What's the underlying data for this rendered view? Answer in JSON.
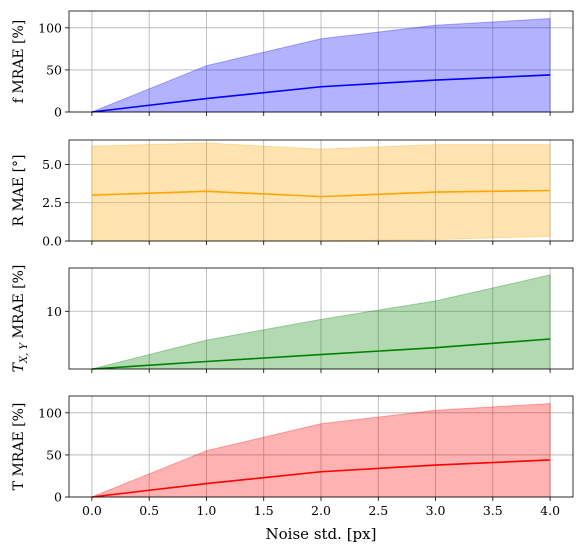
{
  "chart_data": [
    {
      "type": "area",
      "ylabel": "f  MRAE [%]",
      "ylim": [
        0,
        120
      ],
      "yticks": [
        0,
        50,
        100
      ],
      "ytick_labels": [
        "0",
        "50",
        "100"
      ],
      "x": [
        0,
        1,
        2,
        3,
        4
      ],
      "mean": [
        0,
        16,
        30,
        38,
        44
      ],
      "upper": [
        0,
        55,
        87,
        103,
        111
      ],
      "lower": [
        0,
        0,
        0,
        0,
        0
      ],
      "line_color": "#0000ff",
      "fill_color": "#0000ff",
      "grid": true
    },
    {
      "type": "area",
      "ylabel": "R MAE [°]",
      "ylim": [
        0,
        6.6
      ],
      "yticks": [
        0,
        2.5,
        5
      ],
      "ytick_labels": [
        "0.0",
        "2.5",
        "5.0"
      ],
      "x": [
        0,
        1,
        2,
        3,
        4
      ],
      "mean": [
        3.0,
        3.25,
        2.9,
        3.2,
        3.3
      ],
      "upper": [
        6.2,
        6.4,
        6.0,
        6.3,
        6.3
      ],
      "lower": [
        0,
        0,
        0,
        0.1,
        0.3
      ],
      "line_color": "#ffa500",
      "fill_color": "#ffa500",
      "grid": true
    },
    {
      "type": "area",
      "ylabel": "T_X,Y MRAE [%]",
      "ylabel_parts": {
        "main": "T",
        "sub": "X, Y",
        "rest": " MRAE [%]"
      },
      "ylim": [
        0,
        17.5
      ],
      "yticks": [
        10
      ],
      "ytick_labels": [
        "10"
      ],
      "x": [
        0,
        1,
        2,
        3,
        4
      ],
      "mean": [
        0,
        1.3,
        2.5,
        3.7,
        5.2
      ],
      "upper": [
        0,
        5.0,
        8.6,
        11.8,
        16.3
      ],
      "lower": [
        0,
        0,
        0,
        0,
        0
      ],
      "line_color": "#008000",
      "fill_color": "#008000",
      "grid": true
    },
    {
      "type": "area",
      "ylabel": "T MRAE [%]",
      "ylim": [
        0,
        120
      ],
      "yticks": [
        0,
        50,
        100
      ],
      "ytick_labels": [
        "0",
        "50",
        "100"
      ],
      "x": [
        0,
        1,
        2,
        3,
        4
      ],
      "mean": [
        0,
        16,
        30,
        38,
        44
      ],
      "upper": [
        0,
        55,
        87,
        103,
        111
      ],
      "lower": [
        0,
        0,
        0,
        0,
        0
      ],
      "line_color": "#ff0000",
      "fill_color": "#ff0000",
      "grid": true,
      "xlabel": "Noise std. [px]",
      "xtick_labels": [
        "0.0",
        "0.5",
        "1.0",
        "1.5",
        "2.0",
        "2.5",
        "3.0",
        "3.5",
        "4.0"
      ]
    }
  ],
  "x_axis": {
    "xlim": [
      -0.2,
      4.2
    ],
    "xticks": [
      0,
      0.5,
      1,
      1.5,
      2,
      2.5,
      3,
      3.5,
      4
    ]
  }
}
